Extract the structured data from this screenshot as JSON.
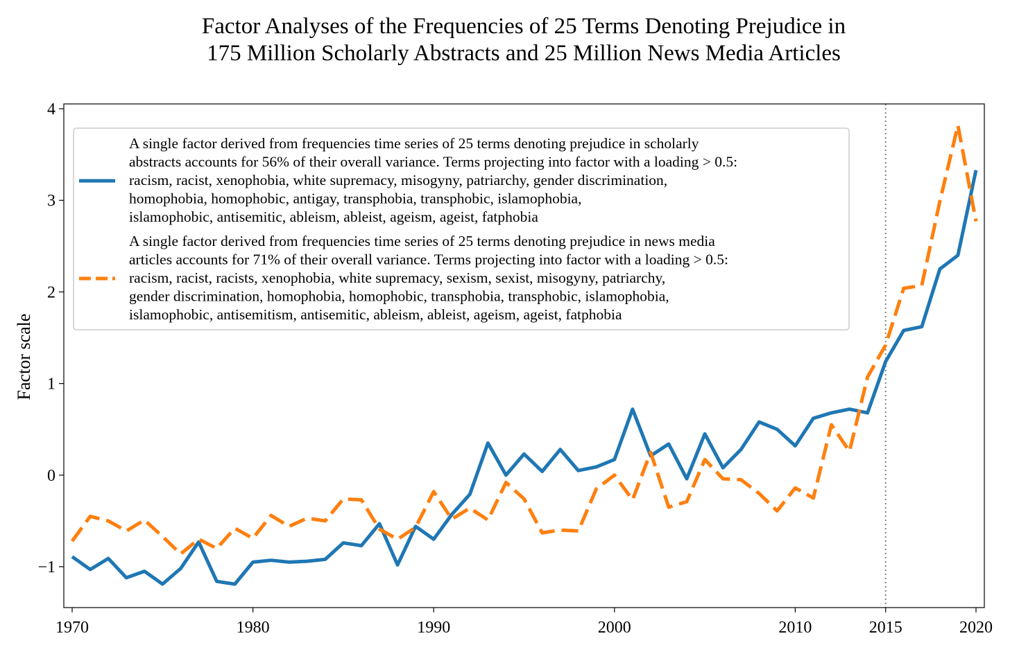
{
  "chart_data": {
    "type": "line",
    "title": [
      "Factor Analyses of the Frequencies of 25 Terms Denoting Prejudice in",
      "175 Million Scholarly Abstracts and 25 Million News Media Articles"
    ],
    "xlabel": "",
    "ylabel": "Factor scale",
    "xlim": [
      1970,
      2020
    ],
    "ylim": [
      -1.45,
      4.05
    ],
    "xticks": [
      1970,
      1980,
      1990,
      2000,
      2010,
      2015,
      2020
    ],
    "yticks": [
      -1,
      0,
      1,
      2,
      3,
      4
    ],
    "ytick_labels": [
      "−1",
      "0",
      "1",
      "2",
      "3",
      "4"
    ],
    "vline": {
      "x": 2015,
      "style": "dotted",
      "color": "#808080"
    },
    "grid": false,
    "legend_placement": "upper-left",
    "x": [
      1970,
      1971,
      1972,
      1973,
      1974,
      1975,
      1976,
      1977,
      1978,
      1979,
      1980,
      1981,
      1982,
      1983,
      1984,
      1985,
      1986,
      1987,
      1988,
      1989,
      1990,
      1991,
      1992,
      1993,
      1994,
      1995,
      1996,
      1997,
      1998,
      1999,
      2000,
      2001,
      2002,
      2003,
      2004,
      2005,
      2006,
      2007,
      2008,
      2009,
      2010,
      2011,
      2012,
      2013,
      2014,
      2015,
      2016,
      2017,
      2018,
      2019,
      2020
    ],
    "series": [
      {
        "key": "scholarly",
        "color": "#1f77b4",
        "dash": "solid",
        "legend_lines": [
          "A single factor derived from frequencies time series of 25 terms denoting prejudice in scholarly",
          "abstracts accounts for 56% of their overall variance. Terms projecting into factor with a loading > 0.5:",
          "racism, racist, xenophobia, white supremacy, misogyny, patriarchy, gender discrimination,",
          "homophobia, homophobic, antigay, transphobia, transphobic, islamophobia,",
          "islamophobic, antisemitic, ableism, ableist, ageism, ageist, fatphobia"
        ],
        "values": [
          -0.89,
          -1.03,
          -0.91,
          -1.12,
          -1.05,
          -1.19,
          -1.02,
          -0.73,
          -1.16,
          -1.19,
          -0.95,
          -0.93,
          -0.95,
          -0.94,
          -0.92,
          -0.74,
          -0.77,
          -0.53,
          -0.98,
          -0.56,
          -0.7,
          -0.43,
          -0.21,
          0.35,
          0.0,
          0.23,
          0.04,
          0.28,
          0.05,
          0.09,
          0.17,
          0.72,
          0.21,
          0.34,
          -0.04,
          0.45,
          0.08,
          0.28,
          0.58,
          0.5,
          0.32,
          0.62,
          0.68,
          0.72,
          0.68,
          1.24,
          1.58,
          1.62,
          2.25,
          2.4,
          3.33
        ]
      },
      {
        "key": "news",
        "color": "#ff7f0e",
        "dash": "dashed",
        "legend_lines": [
          "A single factor derived from frequencies time series of 25 terms denoting prejudice in news media",
          "articles accounts for 71% of their overall variance. Terms projecting into factor with a loading > 0.5:",
          "racism, racist, racists, xenophobia, white supremacy, sexism, sexist, misogyny, patriarchy,",
          "gender discrimination, homophobia, homophobic, transphobia, transphobic, islamophobia,",
          "islamophobic, antisemitism, antisemitic, ableism, ableist, ageism, ageist, fatphobia"
        ],
        "values": [
          -0.72,
          -0.45,
          -0.5,
          -0.61,
          -0.49,
          -0.67,
          -0.86,
          -0.7,
          -0.8,
          -0.58,
          -0.69,
          -0.44,
          -0.56,
          -0.47,
          -0.5,
          -0.26,
          -0.27,
          -0.59,
          -0.7,
          -0.57,
          -0.18,
          -0.48,
          -0.36,
          -0.49,
          -0.08,
          -0.26,
          -0.63,
          -0.6,
          -0.61,
          -0.15,
          0.0,
          -0.27,
          0.25,
          -0.35,
          -0.29,
          0.17,
          -0.04,
          -0.05,
          -0.2,
          -0.39,
          -0.14,
          -0.25,
          0.55,
          0.26,
          1.07,
          1.42,
          2.04,
          2.07,
          2.99,
          3.82,
          2.77
        ]
      }
    ]
  }
}
